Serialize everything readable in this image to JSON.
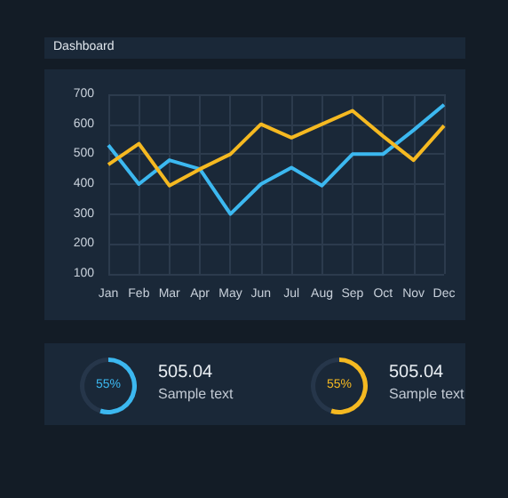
{
  "chart_data": [
    {
      "type": "line",
      "title": "Dashboard",
      "categories": [
        "Jan",
        "Feb",
        "Mar",
        "Apr",
        "May",
        "Jun",
        "Jul",
        "Aug",
        "Sep",
        "Oct",
        "Nov",
        "Dec"
      ],
      "series": [
        {
          "color": "#3cb8f0",
          "values": [
            530,
            400,
            480,
            450,
            300,
            400,
            455,
            395,
            500,
            500,
            580,
            665
          ]
        },
        {
          "color": "#f5b921",
          "values": [
            465,
            535,
            395,
            450,
            500,
            600,
            555,
            600,
            645,
            560,
            480,
            595
          ]
        }
      ],
      "ylim": [
        100,
        700
      ],
      "yticks": [
        100,
        200,
        300,
        400,
        500,
        600,
        700
      ],
      "grid": true,
      "marker": "none",
      "line_style": "solid"
    },
    {
      "type": "donut",
      "categories": [
        null,
        null
      ],
      "values": [
        55,
        45
      ],
      "colors": [
        "#3cb8f0",
        "#26364a"
      ],
      "annotations": [
        "55%",
        "505.04",
        "Sample text"
      ]
    },
    {
      "type": "donut",
      "categories": [
        null,
        null
      ],
      "values": [
        55,
        45
      ],
      "colors": [
        "#f5b921",
        "#26364a"
      ],
      "annotations": [
        "55%",
        "505.04",
        "Sample text"
      ]
    }
  ]
}
